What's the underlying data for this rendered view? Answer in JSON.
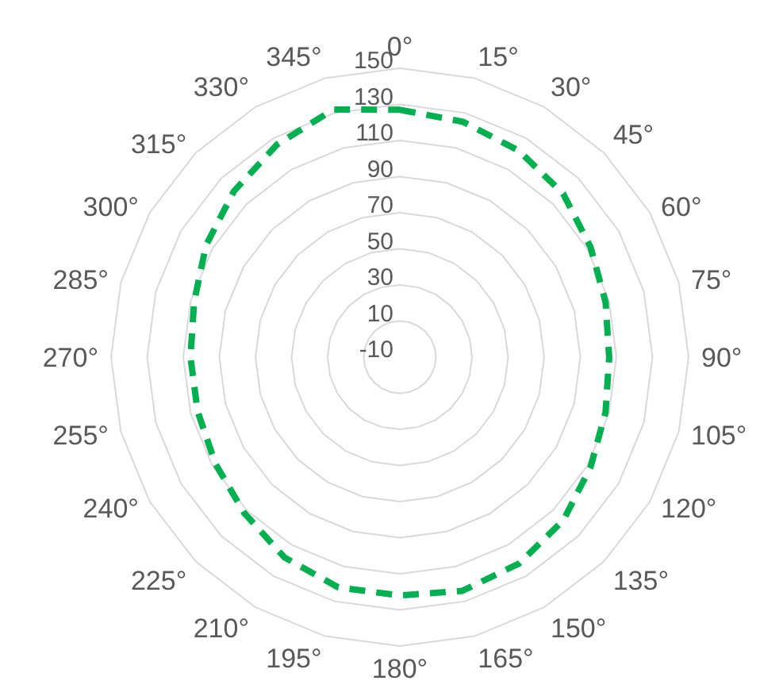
{
  "chart_data": {
    "type": "radar",
    "categories": [
      "0°",
      "15°",
      "30°",
      "45°",
      "60°",
      "75°",
      "90°",
      "105°",
      "120°",
      "135°",
      "150°",
      "165°",
      "180°",
      "195°",
      "210°",
      "225°",
      "240°",
      "255°",
      "270°",
      "285°",
      "300°",
      "315°",
      "330°",
      "345°"
    ],
    "series": [
      {
        "color": "#00b050",
        "values": [
          127,
          125,
          122,
          118,
          112,
          108,
          106,
          108,
          112,
          118,
          122,
          124,
          122,
          122,
          118,
          112,
          108,
          106,
          106,
          108,
          114,
          120,
          126,
          132
        ]
      }
    ],
    "ylim": [
      -10,
      150
    ],
    "yticks": [
      -10,
      10,
      30,
      50,
      70,
      90,
      110,
      130,
      150
    ],
    "grid": true,
    "line_style": "dashed",
    "marker": "none"
  }
}
